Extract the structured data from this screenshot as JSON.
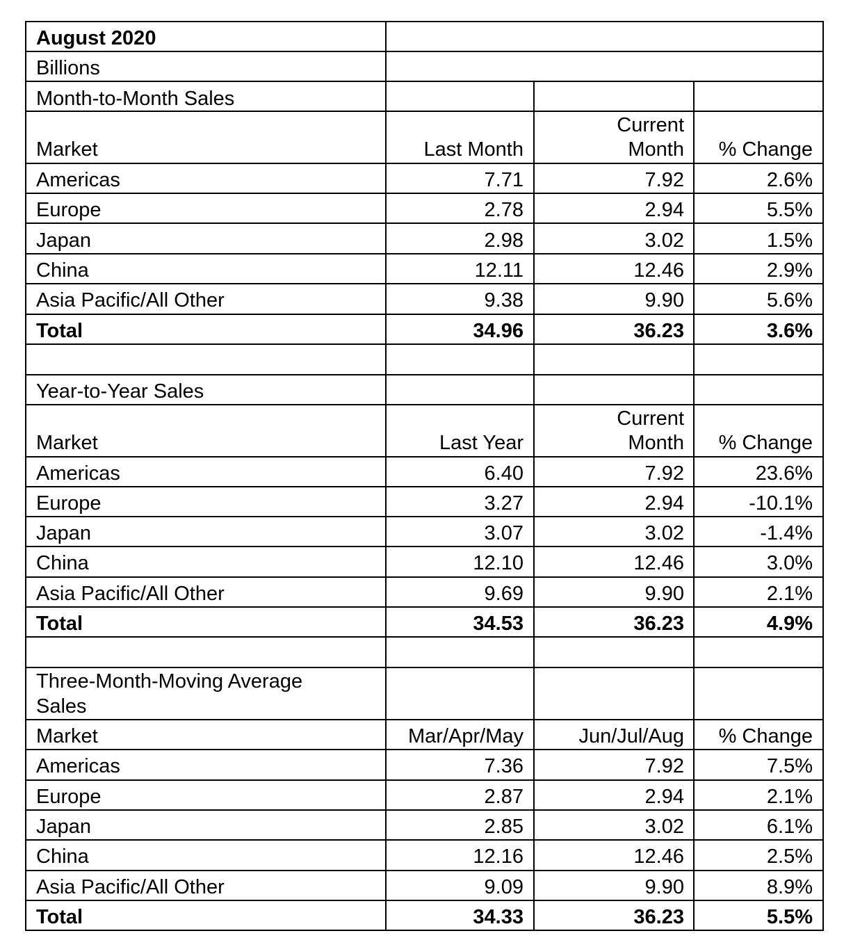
{
  "title": "August 2020",
  "units": "Billions",
  "sections": [
    {
      "heading": "Month-to-Month Sales",
      "columns": {
        "market": "Market",
        "col1": "Last Month",
        "col2_line1": "Current",
        "col2_line2": "Month",
        "col3": "% Change"
      },
      "rows": [
        {
          "market": "Americas",
          "v1": "7.71",
          "v2": "7.92",
          "pct": "2.6%"
        },
        {
          "market": "Europe",
          "v1": "2.78",
          "v2": "2.94",
          "pct": "5.5%"
        },
        {
          "market": "Japan",
          "v1": "2.98",
          "v2": "3.02",
          "pct": "1.5%"
        },
        {
          "market": "China",
          "v1": "12.11",
          "v2": "12.46",
          "pct": "2.9%"
        },
        {
          "market": "Asia Pacific/All Other",
          "v1": "9.38",
          "v2": "9.90",
          "pct": "5.6%"
        }
      ],
      "total": {
        "market": "Total",
        "v1": "34.96",
        "v2": "36.23",
        "pct": "3.6%"
      }
    },
    {
      "heading": "Year-to-Year Sales",
      "columns": {
        "market": "Market",
        "col1": "Last Year",
        "col2_line1": "Current",
        "col2_line2": "Month",
        "col3": "% Change"
      },
      "rows": [
        {
          "market": "Americas",
          "v1": "6.40",
          "v2": "7.92",
          "pct": "23.6%"
        },
        {
          "market": "Europe",
          "v1": "3.27",
          "v2": "2.94",
          "pct": "-10.1%"
        },
        {
          "market": "Japan",
          "v1": "3.07",
          "v2": "3.02",
          "pct": "-1.4%"
        },
        {
          "market": "China",
          "v1": "12.10",
          "v2": "12.46",
          "pct": "3.0%"
        },
        {
          "market": "Asia Pacific/All Other",
          "v1": "9.69",
          "v2": "9.90",
          "pct": "2.1%"
        }
      ],
      "total": {
        "market": "Total",
        "v1": "34.53",
        "v2": "36.23",
        "pct": "4.9%"
      }
    },
    {
      "heading_line1": "Three-Month-Moving Average",
      "heading_line2": "Sales",
      "columns": {
        "market": "Market",
        "col1": "Mar/Apr/May",
        "col2": "Jun/Jul/Aug",
        "col3": "% Change"
      },
      "rows": [
        {
          "market": "Americas",
          "v1": "7.36",
          "v2": "7.92",
          "pct": "7.5%"
        },
        {
          "market": "Europe",
          "v1": "2.87",
          "v2": "2.94",
          "pct": "2.1%"
        },
        {
          "market": "Japan",
          "v1": "2.85",
          "v2": "3.02",
          "pct": "6.1%"
        },
        {
          "market": "China",
          "v1": "12.16",
          "v2": "12.46",
          "pct": "2.5%"
        },
        {
          "market": "Asia Pacific/All Other",
          "v1": "9.09",
          "v2": "9.90",
          "pct": "8.9%"
        }
      ],
      "total": {
        "market": "Total",
        "v1": "34.33",
        "v2": "36.23",
        "pct": "5.5%"
      }
    }
  ]
}
